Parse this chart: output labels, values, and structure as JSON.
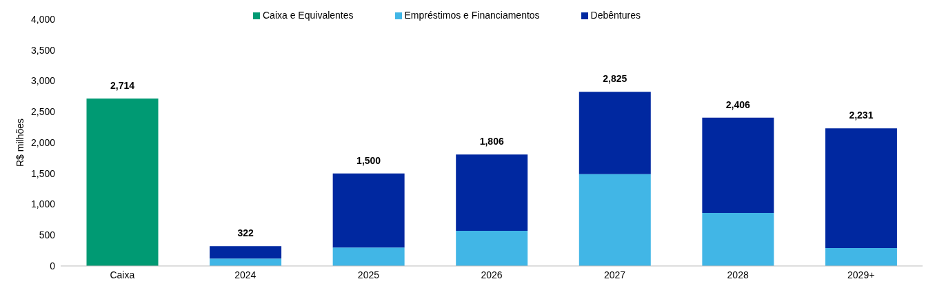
{
  "chart_data": {
    "type": "bar",
    "stacked": true,
    "ylabel": "R$ milhões",
    "categories": [
      "Caixa",
      "2024",
      "2025",
      "2026",
      "2027",
      "2028",
      "2029+"
    ],
    "series": [
      {
        "name": "Caixa e Equivalentes",
        "color": "#009a73",
        "values": [
          2714,
          null,
          null,
          null,
          null,
          null,
          null
        ]
      },
      {
        "name": "Empréstimos e Financiamentos",
        "color": "#41b6e6",
        "values": [
          null,
          120,
          300,
          570,
          1490,
          860,
          290
        ]
      },
      {
        "name": "Debêntures",
        "color": "#0028a0",
        "values": [
          null,
          202,
          1200,
          1236,
          1335,
          1546,
          1941
        ]
      }
    ],
    "totals": [
      "2,714",
      "322",
      "1,500",
      "1,806",
      "2,825",
      "2,406",
      "2,231"
    ],
    "ylim": [
      0,
      4000
    ],
    "yticks": [
      0,
      500,
      {
        "value": 1000,
        "label": "1,000"
      },
      {
        "value": 1500,
        "label": "1,500"
      },
      {
        "value": 2000,
        "label": "2,000"
      },
      {
        "value": 2500,
        "label": "2,500"
      },
      {
        "value": 3000,
        "label": "3,000"
      },
      {
        "value": 3500,
        "label": "3,500"
      },
      {
        "value": 4000,
        "label": "4,000"
      }
    ],
    "grid": false,
    "legend": "top"
  }
}
